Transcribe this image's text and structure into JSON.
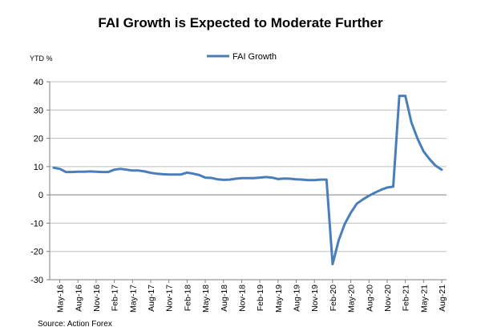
{
  "chart_data": {
    "type": "line",
    "title": "FAI Growth is Expected to Moderate Further",
    "unit_label": "YTD %",
    "legend": [
      "FAI Growth"
    ],
    "source": "Source: Action Forex",
    "ylim": [
      -30,
      40
    ],
    "y_ticks": [
      40,
      30,
      20,
      10,
      0,
      -10,
      -20,
      -30
    ],
    "x_tick_labels": [
      "May-16",
      "Aug-16",
      "Nov-16",
      "Feb-17",
      "May-17",
      "Aug-17",
      "Nov-17",
      "Feb-18",
      "May-18",
      "Aug-18",
      "Nov-18",
      "Feb-19",
      "May-19",
      "Aug-19",
      "Nov-19",
      "Feb-20",
      "May-20",
      "Aug-20",
      "Nov-20",
      "Feb-21",
      "May-21",
      "Aug-21"
    ],
    "grid": "horizontal",
    "legend_position": "top-center",
    "series": [
      {
        "name": "FAI Growth",
        "color": "#4a7ebb",
        "x": [
          "Apr-16",
          "May-16",
          "Jun-16",
          "Jul-16",
          "Aug-16",
          "Sep-16",
          "Oct-16",
          "Nov-16",
          "Dec-16",
          "Jan-17",
          "Feb-17",
          "Mar-17",
          "Apr-17",
          "May-17",
          "Jun-17",
          "Jul-17",
          "Aug-17",
          "Sep-17",
          "Oct-17",
          "Nov-17",
          "Dec-17",
          "Jan-18",
          "Feb-18",
          "Mar-18",
          "Apr-18",
          "May-18",
          "Jun-18",
          "Jul-18",
          "Aug-18",
          "Sep-18",
          "Oct-18",
          "Nov-18",
          "Dec-18",
          "Jan-19",
          "Feb-19",
          "Mar-19",
          "Apr-19",
          "May-19",
          "Jun-19",
          "Jul-19",
          "Aug-19",
          "Sep-19",
          "Oct-19",
          "Nov-19",
          "Dec-19",
          "Jan-20",
          "Feb-20",
          "Mar-20",
          "Apr-20",
          "May-20",
          "Jun-20",
          "Jul-20",
          "Aug-20",
          "Sep-20",
          "Oct-20",
          "Nov-20",
          "Dec-20",
          "Jan-21",
          "Feb-21",
          "Mar-21",
          "Apr-21",
          "May-21",
          "Jun-21",
          "Jul-21",
          "Aug-21"
        ],
        "values": [
          9.6,
          9.2,
          8.1,
          8.1,
          8.2,
          8.2,
          8.3,
          8.2,
          8.1,
          8.1,
          8.9,
          9.2,
          8.9,
          8.6,
          8.6,
          8.3,
          7.8,
          7.5,
          7.3,
          7.2,
          7.2,
          7.2,
          7.9,
          7.5,
          7.0,
          6.1,
          6.0,
          5.5,
          5.3,
          5.4,
          5.7,
          5.9,
          5.9,
          5.9,
          6.1,
          6.3,
          6.1,
          5.6,
          5.8,
          5.7,
          5.5,
          5.4,
          5.2,
          5.2,
          5.4,
          5.4,
          -24.5,
          -16.1,
          -10.3,
          -6.3,
          -3.1,
          -1.6,
          -0.3,
          0.8,
          1.8,
          2.6,
          2.9,
          35.0,
          35.0,
          25.6,
          19.9,
          15.4,
          12.6,
          10.3,
          8.9
        ]
      }
    ]
  }
}
